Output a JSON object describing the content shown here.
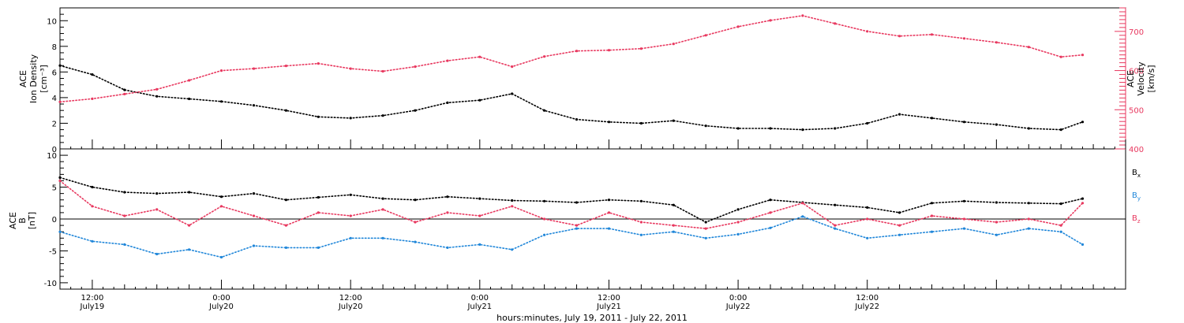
{
  "chart_data": [
    {
      "type": "scatter",
      "panel": "top",
      "ylabel_left": [
        "ACE",
        "Ion Density",
        "[cm⁻³]"
      ],
      "ylabel_right": [
        "ACE",
        "Velocity",
        "[km/s]"
      ],
      "ylim_left": [
        0,
        11
      ],
      "ylim_right": [
        400,
        760
      ],
      "left_ticks": [
        "0",
        "2",
        "4",
        "6",
        "8",
        "10"
      ],
      "right_ticks": [
        "400",
        "500",
        "600",
        "700"
      ],
      "x_hours": [
        0,
        3,
        6,
        9,
        12,
        15,
        18,
        21,
        24,
        27,
        30,
        33,
        36,
        39,
        42,
        45,
        48,
        51,
        54,
        57,
        60,
        63,
        66,
        69,
        72,
        75,
        78,
        81,
        84,
        87,
        90,
        93,
        95
      ],
      "series": [
        {
          "name": "",
          "axis": "left",
          "color": "#000000",
          "values": [
            6.5,
            5.8,
            4.6,
            4.1,
            3.9,
            3.7,
            3.4,
            3.0,
            2.5,
            2.4,
            2.6,
            3.0,
            3.6,
            3.8,
            4.3,
            3.0,
            2.3,
            2.1,
            2.0,
            2.2,
            1.8,
            1.6,
            1.6,
            1.5,
            1.6,
            2.0,
            2.7,
            2.4,
            2.1,
            1.9,
            1.6,
            1.5,
            2.1
          ]
        },
        {
          "name": "",
          "axis": "right",
          "color": "#e8385f",
          "values": [
            520,
            528,
            540,
            552,
            575,
            600,
            605,
            612,
            618,
            605,
            598,
            610,
            625,
            635,
            610,
            636,
            650,
            652,
            656,
            668,
            690,
            712,
            728,
            740,
            720,
            700,
            688,
            692,
            682,
            672,
            660,
            635,
            640
          ]
        }
      ]
    },
    {
      "type": "scatter",
      "panel": "bottom",
      "ylabel_left": [
        "ACE",
        "B",
        "[nT]"
      ],
      "ylim": [
        -11,
        11
      ],
      "left_ticks": [
        "-10",
        "-5",
        "0",
        "5",
        "10"
      ],
      "x_hours": [
        0,
        3,
        6,
        9,
        12,
        15,
        18,
        21,
        24,
        27,
        30,
        33,
        36,
        39,
        42,
        45,
        48,
        51,
        54,
        57,
        60,
        63,
        66,
        69,
        72,
        75,
        78,
        81,
        84,
        87,
        90,
        93,
        95
      ],
      "series": [
        {
          "name": "Bx",
          "color": "#000000",
          "values": [
            6.5,
            5.0,
            4.2,
            4.0,
            4.2,
            3.5,
            4.0,
            3.0,
            3.4,
            3.8,
            3.2,
            3.0,
            3.5,
            3.2,
            2.9,
            2.8,
            2.6,
            3.0,
            2.8,
            2.2,
            -0.5,
            1.5,
            3.0,
            2.6,
            2.2,
            1.8,
            1.0,
            2.5,
            2.8,
            2.6,
            2.5,
            2.4,
            3.2
          ]
        },
        {
          "name": "By",
          "color": "#1f86d9",
          "values": [
            -2.0,
            -3.5,
            -4.0,
            -5.5,
            -4.8,
            -6.0,
            -4.2,
            -4.5,
            -4.5,
            -3.0,
            -3.0,
            -3.6,
            -4.5,
            -4.0,
            -4.8,
            -2.5,
            -1.5,
            -1.5,
            -2.5,
            -2.0,
            -3.0,
            -2.4,
            -1.4,
            0.4,
            -1.5,
            -3.0,
            -2.5,
            -2.0,
            -1.5,
            -2.5,
            -1.5,
            -2.0,
            -4.0
          ]
        },
        {
          "name": "Bz",
          "color": "#e8385f",
          "values": [
            6.0,
            2.0,
            0.5,
            1.5,
            -1.0,
            2.0,
            0.5,
            -1.0,
            1.0,
            0.5,
            1.5,
            -0.5,
            1.0,
            0.5,
            2.0,
            0.0,
            -1.0,
            1.0,
            -0.5,
            -1.0,
            -1.5,
            -0.5,
            1.0,
            2.5,
            -1.0,
            0.0,
            -1.0,
            0.5,
            0.0,
            -0.5,
            0.0,
            -1.0,
            2.5
          ]
        }
      ]
    }
  ],
  "x_axis": {
    "start_hour": 9,
    "end_hour": 108,
    "tick_labels": [
      {
        "hour": 12,
        "time": "12:00",
        "date": "July19"
      },
      {
        "hour": 24,
        "time": "0:00",
        "date": "July20"
      },
      {
        "hour": 36,
        "time": "12:00",
        "date": "July20"
      },
      {
        "hour": 48,
        "time": "0:00",
        "date": "July21"
      },
      {
        "hour": 60,
        "time": "12:00",
        "date": "July21"
      },
      {
        "hour": 72,
        "time": "0:00",
        "date": "July22"
      },
      {
        "hour": 84,
        "time": "12:00",
        "date": "July22"
      }
    ],
    "xlabel": "hours:minutes, July 19, 2011 - July 22, 2011"
  },
  "colors": {
    "density": "#000000",
    "velocity": "#e8385f",
    "bx": "#000000",
    "by": "#1f86d9",
    "bz": "#e8385f"
  }
}
